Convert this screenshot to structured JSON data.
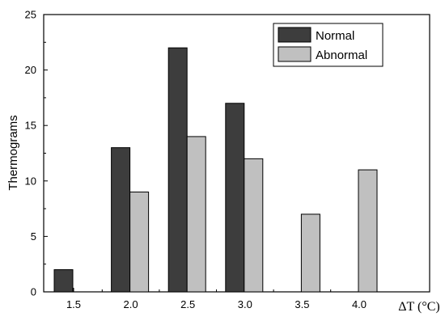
{
  "chart_data": {
    "type": "bar",
    "categories": [
      "1.5",
      "2.0",
      "2.5",
      "3.0",
      "3.5",
      "4.0"
    ],
    "series": [
      {
        "name": "Normal",
        "values": [
          2,
          13,
          22,
          17,
          null,
          null
        ],
        "color": "#3d3d3d"
      },
      {
        "name": "Abnormal",
        "values": [
          null,
          9,
          14,
          12,
          7,
          11
        ],
        "color": "#c0c0c0"
      }
    ],
    "xlabel": "ΔT (°C)",
    "ylabel": "Thermograms",
    "ylim": [
      0,
      25
    ],
    "yticks": [
      "0",
      "5",
      "10",
      "15",
      "20",
      "25"
    ],
    "grid": false,
    "legend_position": "top-right"
  }
}
